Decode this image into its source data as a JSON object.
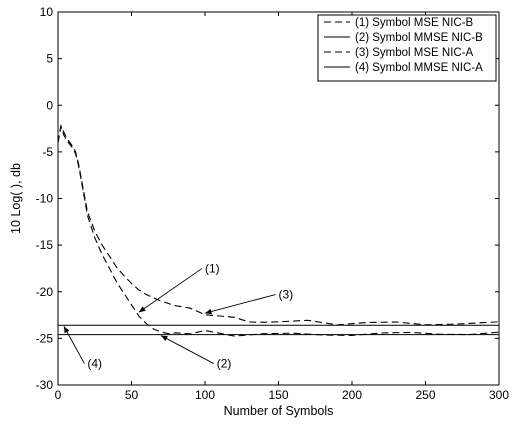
{
  "chart_data": {
    "type": "line",
    "title": "",
    "xlabel": "Number of Symbols",
    "ylabel": "10 Log( ), db",
    "xlim": [
      0,
      300
    ],
    "ylim": [
      -30,
      10
    ],
    "xticks": [
      0,
      50,
      100,
      150,
      200,
      250,
      300
    ],
    "yticks": [
      10,
      5,
      0,
      -5,
      -10,
      -15,
      -20,
      -25,
      -30
    ],
    "grid": false,
    "legend_position": "top-right",
    "series": [
      {
        "name": "(1) Symbol MSE NIC-B",
        "style": "dashed",
        "x": [
          0,
          2,
          4,
          6,
          8,
          10,
          12,
          14,
          16,
          18,
          20,
          25,
          30,
          35,
          40,
          45,
          50,
          55,
          60,
          65,
          70,
          75,
          80,
          90,
          100,
          120,
          140,
          160,
          180,
          200,
          220,
          240,
          260,
          280,
          300
        ],
        "y": [
          -4,
          -2.3,
          -3.2,
          -3.8,
          -4.2,
          -4.6,
          -5.2,
          -6.5,
          -8.2,
          -10,
          -11.8,
          -14.2,
          -16,
          -17.5,
          -19,
          -20.2,
          -21.4,
          -22.6,
          -23.4,
          -24,
          -24.3,
          -24.5,
          -24.4,
          -24.6,
          -24.4,
          -24.6,
          -24.5,
          -24.6,
          -24.4,
          -24.6,
          -24.5,
          -24.6,
          -24.4,
          -24.6,
          -24.5
        ]
      },
      {
        "name": "(2) Symbol MMSE NIC-B",
        "style": "solid",
        "x": [
          0,
          300
        ],
        "y": [
          -24.6,
          -24.6
        ]
      },
      {
        "name": "(3) Symbol MSE NIC-A",
        "style": "dashed",
        "x": [
          0,
          2,
          4,
          6,
          8,
          10,
          12,
          14,
          16,
          18,
          20,
          25,
          30,
          35,
          40,
          45,
          50,
          55,
          60,
          70,
          80,
          90,
          100,
          110,
          120,
          130,
          140,
          150,
          170,
          190,
          210,
          230,
          250,
          270,
          300
        ],
        "y": [
          -4,
          -2.2,
          -2.9,
          -3.5,
          -4,
          -4.4,
          -5,
          -6.3,
          -8,
          -9.7,
          -11.4,
          -13.5,
          -15,
          -16.2,
          -17.4,
          -18.3,
          -19.1,
          -19.8,
          -20.3,
          -21,
          -21.5,
          -22,
          -22.3,
          -22.6,
          -22.9,
          -23,
          -23.2,
          -23.3,
          -23.3,
          -23.4,
          -23.3,
          -23.4,
          -23.3,
          -23.4,
          -23.3
        ]
      },
      {
        "name": "(4) Symbol MMSE NIC-A",
        "style": "solid",
        "x": [
          0,
          300
        ],
        "y": [
          -23.6,
          -23.6
        ]
      }
    ],
    "annotations": [
      {
        "text": "(1)",
        "x": 100,
        "y": -17.5,
        "arrow_to": [
          55,
          -22.2
        ]
      },
      {
        "text": "(3)",
        "x": 150,
        "y": -20.3,
        "arrow_to": [
          100,
          -22.3
        ]
      },
      {
        "text": "(4)",
        "x": 20,
        "y": -27.7,
        "arrow_to": [
          4,
          -23.7
        ]
      },
      {
        "text": "(2)",
        "x": 108,
        "y": -27.7,
        "arrow_to": [
          70,
          -24.7
        ]
      }
    ]
  }
}
